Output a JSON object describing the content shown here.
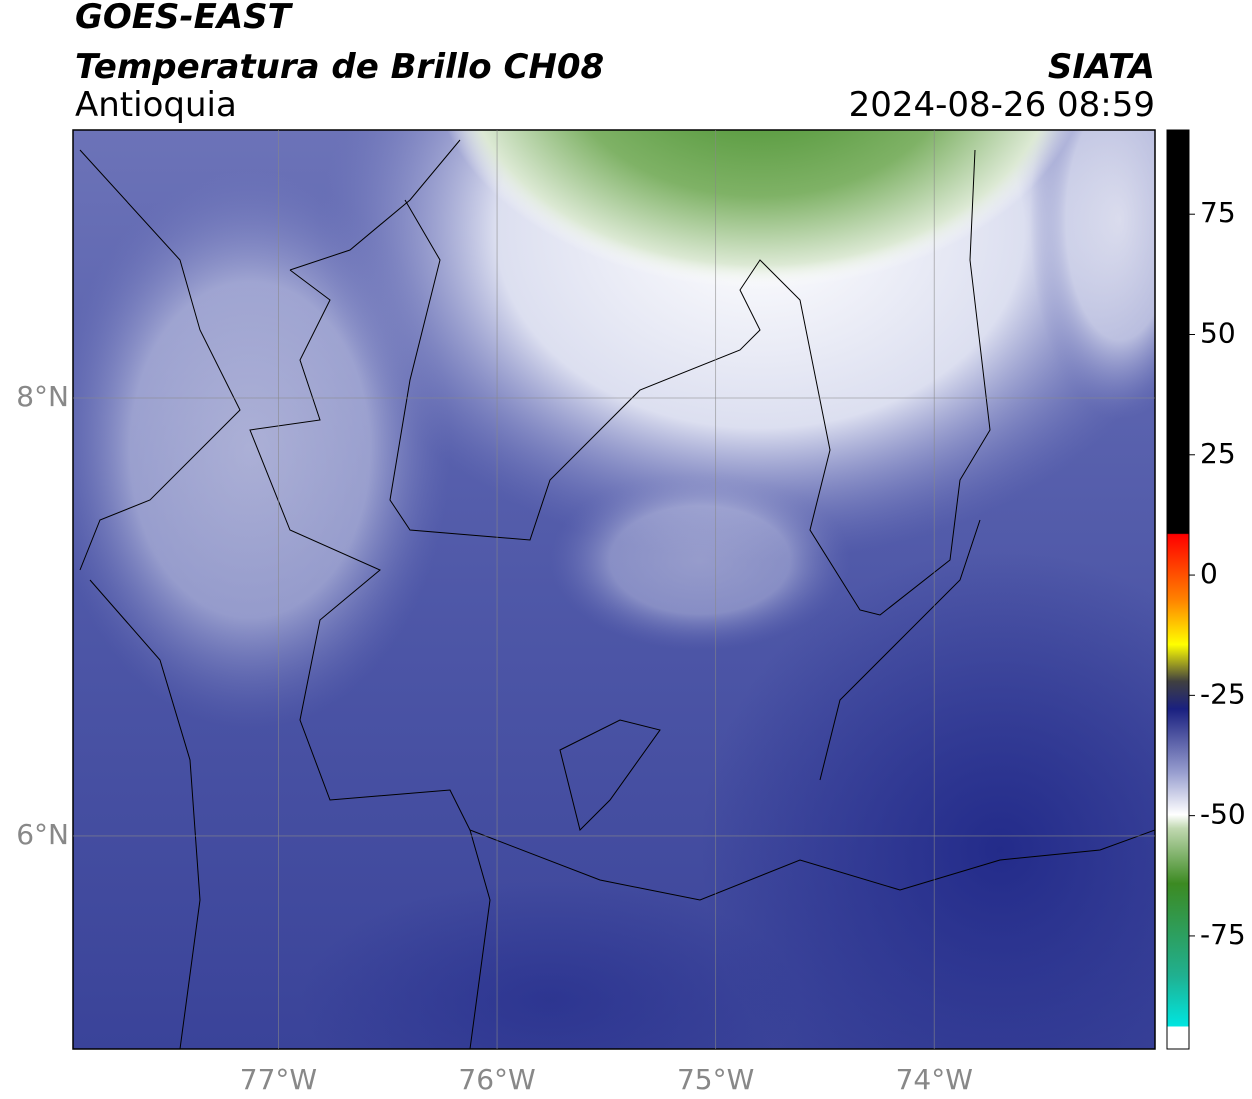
{
  "header": {
    "title": "GOES-EAST",
    "subtitle": "Temperatura de Brillo CH08",
    "region": "Antioquia",
    "source": "SIATA",
    "datetime": "2024-08-26 08:59"
  },
  "map": {
    "lonlim": [
      -77.94,
      -72.99
    ],
    "latlim": [
      5.027,
      9.224
    ],
    "lat_ticks": [
      {
        "value": 8,
        "label": "8°N"
      },
      {
        "value": 6,
        "label": "6°N"
      }
    ],
    "lon_ticks": [
      {
        "value": -77,
        "label": "77°W"
      },
      {
        "value": -76,
        "label": "76°W"
      },
      {
        "value": -75,
        "label": "75°W"
      },
      {
        "value": -74,
        "label": "74°W"
      }
    ]
  },
  "colorbar": {
    "range": [
      -98.5,
      92.5
    ],
    "ticks": [
      75,
      50,
      25,
      0,
      -25,
      -50,
      -75
    ]
  }
}
